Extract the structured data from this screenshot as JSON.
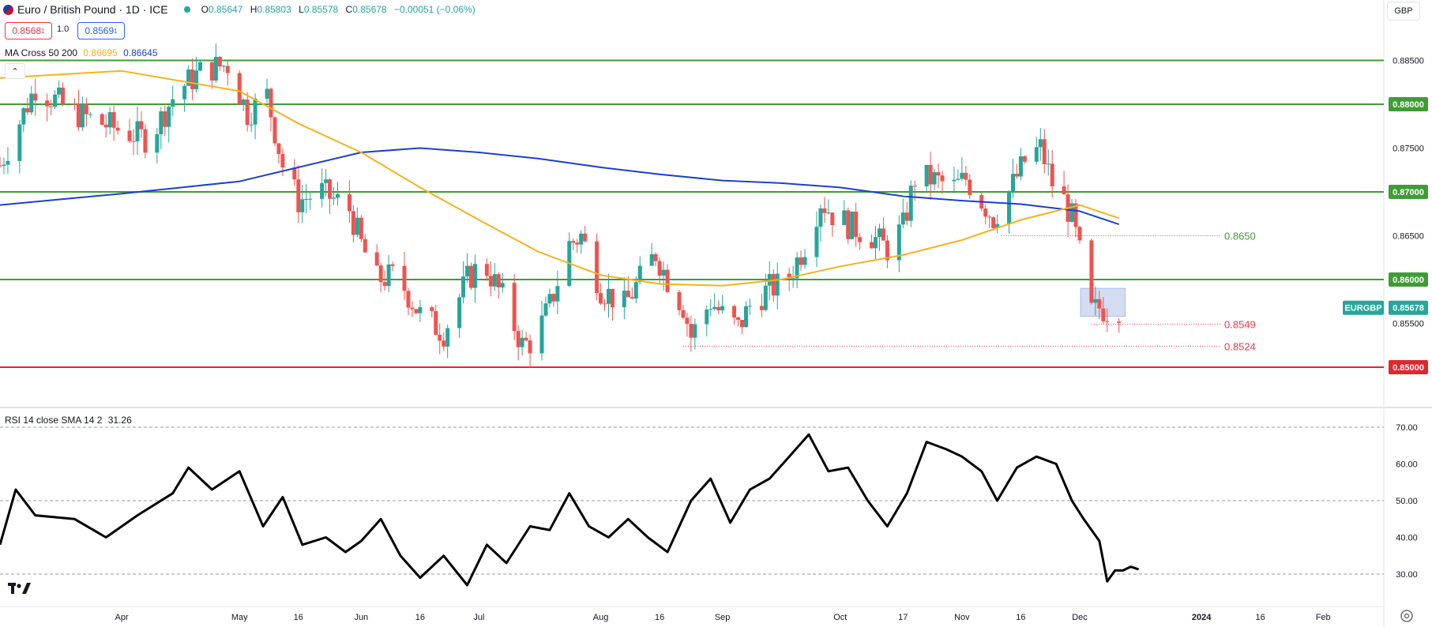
{
  "header": {
    "logo_icon": "eur-gbp-flag-icon",
    "symbol_title": "Euro / British Pound · 1D · ICE",
    "status_dot_color": "#26a69a",
    "ohlc": [
      {
        "key": "O",
        "value": "0.85647"
      },
      {
        "key": "H",
        "value": "0.85803"
      },
      {
        "key": "L",
        "value": "0.85578"
      },
      {
        "key": "C",
        "value": "0.85678"
      },
      {
        "key": "",
        "value": "−0.00051 (−0.06%)"
      }
    ],
    "sell_box": "0.8568",
    "sell_sup": "1",
    "spread": "1.0",
    "buy_box": "0.8569",
    "buy_sup": "1",
    "currency": "GBP"
  },
  "indicators": {
    "ma_label": "MA Cross 50 200",
    "ma50_value": "0.86695",
    "ma200_value": "0.86645",
    "ma50_color": "#f5b21d",
    "ma200_color": "#1e40c8",
    "collapse_icon": "chevron-up-icon",
    "rsi_label": "RSI 14 close SMA 14 2",
    "rsi_value": "31.26"
  },
  "chart_data": {
    "type": "candlestick",
    "title": "Euro / British Pound · 1D · ICE",
    "x_tick_labels": [
      "Apr",
      "May",
      "16",
      "Jun",
      "16",
      "Jul",
      "Aug",
      "16",
      "Sep",
      "Oct",
      "17",
      "Nov",
      "16",
      "Dec",
      "2024",
      "16",
      "Feb"
    ],
    "price_axis": {
      "ticks": [
        "0.88500",
        "0.88000",
        "0.87500",
        "0.87000",
        "0.86500",
        "0.86000",
        "0.85500",
        "0.85000"
      ],
      "ylim": [
        0.8476,
        0.8892
      ]
    },
    "current_price": {
      "label": "EURGBP",
      "value": "0.85678",
      "color": "#26a69a"
    },
    "horizontal_levels": [
      {
        "value": 0.885,
        "label": "",
        "color": "#3f9c35"
      },
      {
        "value": 0.88,
        "label": "0.88000",
        "color": "#3f9c35"
      },
      {
        "value": 0.87,
        "label": "0.87000",
        "color": "#3f9c35"
      },
      {
        "value": 0.86,
        "label": "0.86000",
        "color": "#3f9c35"
      },
      {
        "value": 0.85,
        "label": "0.85000",
        "color": "#e0272e"
      }
    ],
    "dotted_levels": [
      {
        "value": 0.865,
        "label": "0.8650",
        "color": "#3f9c35"
      },
      {
        "value": 0.8549,
        "label": "0.8549",
        "color": "#f23645"
      },
      {
        "value": 0.8524,
        "label": "0.8524",
        "color": "#f23645"
      }
    ],
    "consolidation_box": {
      "from_price": 0.8558,
      "to_price": 0.859
    },
    "close_path": [
      [
        "2023-03-01",
        0.873
      ],
      [
        "2023-03-10",
        0.882
      ],
      [
        "2023-03-20",
        0.879
      ],
      [
        "2023-04-01",
        0.877
      ],
      [
        "2023-04-08",
        0.876
      ],
      [
        "2023-04-15",
        0.8815
      ],
      [
        "2023-04-22",
        0.884
      ],
      [
        "2023-04-28",
        0.8845
      ],
      [
        "2023-05-03",
        0.879
      ],
      [
        "2023-05-08",
        0.881
      ],
      [
        "2023-05-12",
        0.873
      ],
      [
        "2023-05-16",
        0.869
      ],
      [
        "2023-05-22",
        0.87
      ],
      [
        "2023-05-29",
        0.868
      ],
      [
        "2023-06-01",
        0.864
      ],
      [
        "2023-06-05",
        0.86
      ],
      [
        "2023-06-10",
        0.8605
      ],
      [
        "2023-06-16",
        0.856
      ],
      [
        "2023-06-22",
        0.854
      ],
      [
        "2023-06-28",
        0.86
      ],
      [
        "2023-07-02",
        0.862
      ],
      [
        "2023-07-07",
        0.858
      ],
      [
        "2023-07-12",
        0.8525
      ],
      [
        "2023-07-15",
        0.853
      ],
      [
        "2023-07-19",
        0.857
      ],
      [
        "2023-07-24",
        0.864
      ],
      [
        "2023-07-27",
        0.865
      ],
      [
        "2023-08-01",
        0.859
      ],
      [
        "2023-08-07",
        0.857
      ],
      [
        "2023-08-11",
        0.86
      ],
      [
        "2023-08-15",
        0.863
      ],
      [
        "2023-08-18",
        0.86
      ],
      [
        "2023-08-22",
        0.857
      ],
      [
        "2023-08-24",
        0.8535
      ],
      [
        "2023-08-29",
        0.8575
      ],
      [
        "2023-09-01",
        0.856
      ],
      [
        "2023-09-05",
        0.8545
      ],
      [
        "2023-09-08",
        0.857
      ],
      [
        "2023-09-13",
        0.859
      ],
      [
        "2023-09-17",
        0.8595
      ],
      [
        "2023-09-22",
        0.864
      ],
      [
        "2023-09-26",
        0.869
      ],
      [
        "2023-09-29",
        0.8675
      ],
      [
        "2023-10-04",
        0.866
      ],
      [
        "2023-10-09",
        0.865
      ],
      [
        "2023-10-13",
        0.8635
      ],
      [
        "2023-10-17",
        0.866
      ],
      [
        "2023-10-20",
        0.8715
      ],
      [
        "2023-10-24",
        0.8715
      ],
      [
        "2023-10-30",
        0.8705
      ],
      [
        "2023-11-02",
        0.8715
      ],
      [
        "2023-11-06",
        0.869
      ],
      [
        "2023-11-09",
        0.867
      ],
      [
        "2023-11-13",
        0.87
      ],
      [
        "2023-11-17",
        0.8735
      ],
      [
        "2023-11-21",
        0.875
      ],
      [
        "2023-11-24",
        0.871
      ],
      [
        "2023-11-27",
        0.869
      ],
      [
        "2023-11-29",
        0.867
      ],
      [
        "2023-12-01",
        0.863
      ],
      [
        "2023-12-04",
        0.8563
      ],
      [
        "2023-12-06",
        0.8568
      ],
      [
        "2023-12-08",
        0.8565
      ],
      [
        "2023-12-11",
        0.8568
      ]
    ],
    "ma50": {
      "name": "MA 50",
      "points": [
        [
          "2023-03-01",
          0.883
        ],
        [
          "2023-04-01",
          0.8838
        ],
        [
          "2023-05-01",
          0.8815
        ],
        [
          "2023-05-16",
          0.8778
        ],
        [
          "2023-06-01",
          0.8745
        ],
        [
          "2023-06-16",
          0.8705
        ],
        [
          "2023-07-01",
          0.8668
        ],
        [
          "2023-07-16",
          0.8632
        ],
        [
          "2023-08-01",
          0.8605
        ],
        [
          "2023-08-16",
          0.8595
        ],
        [
          "2023-09-01",
          0.8593
        ],
        [
          "2023-09-16",
          0.86
        ],
        [
          "2023-10-01",
          0.8615
        ],
        [
          "2023-10-17",
          0.8628
        ],
        [
          "2023-11-01",
          0.8645
        ],
        [
          "2023-11-16",
          0.8668
        ],
        [
          "2023-12-01",
          0.8685
        ],
        [
          "2023-12-11",
          0.867
        ]
      ]
    },
    "ma200": {
      "name": "MA 200",
      "points": [
        [
          "2023-03-01",
          0.8685
        ],
        [
          "2023-04-01",
          0.8698
        ],
        [
          "2023-05-01",
          0.8712
        ],
        [
          "2023-05-16",
          0.8728
        ],
        [
          "2023-06-01",
          0.8745
        ],
        [
          "2023-06-16",
          0.875
        ],
        [
          "2023-07-01",
          0.8745
        ],
        [
          "2023-07-16",
          0.8738
        ],
        [
          "2023-08-01",
          0.8728
        ],
        [
          "2023-08-16",
          0.872
        ],
        [
          "2023-09-01",
          0.8713
        ],
        [
          "2023-09-16",
          0.871
        ],
        [
          "2023-10-01",
          0.8705
        ],
        [
          "2023-10-17",
          0.8695
        ],
        [
          "2023-11-01",
          0.869
        ],
        [
          "2023-11-16",
          0.8686
        ],
        [
          "2023-12-01",
          0.8678
        ],
        [
          "2023-12-11",
          0.8663
        ]
      ]
    },
    "rsi": {
      "name": "RSI 14",
      "axis_ticks": [
        "70.00",
        "60.00",
        "50.00",
        "40.00",
        "30.00"
      ],
      "ylim": [
        21,
        74
      ],
      "reference_levels": [
        70,
        50,
        30
      ],
      "points": [
        [
          "2023-03-01",
          38
        ],
        [
          "2023-03-05",
          53
        ],
        [
          "2023-03-10",
          46
        ],
        [
          "2023-03-20",
          45
        ],
        [
          "2023-03-28",
          40
        ],
        [
          "2023-04-05",
          46
        ],
        [
          "2023-04-14",
          52
        ],
        [
          "2023-04-18",
          59
        ],
        [
          "2023-04-24",
          53
        ],
        [
          "2023-05-01",
          58
        ],
        [
          "2023-05-07",
          43
        ],
        [
          "2023-05-12",
          51
        ],
        [
          "2023-05-17",
          38
        ],
        [
          "2023-05-23",
          40
        ],
        [
          "2023-05-28",
          36
        ],
        [
          "2023-06-01",
          39
        ],
        [
          "2023-06-06",
          45
        ],
        [
          "2023-06-11",
          35
        ],
        [
          "2023-06-16",
          29
        ],
        [
          "2023-06-22",
          35
        ],
        [
          "2023-06-28",
          27
        ],
        [
          "2023-07-03",
          38
        ],
        [
          "2023-07-08",
          33
        ],
        [
          "2023-07-14",
          43
        ],
        [
          "2023-07-19",
          42
        ],
        [
          "2023-07-24",
          52
        ],
        [
          "2023-07-29",
          43
        ],
        [
          "2023-08-03",
          40
        ],
        [
          "2023-08-08",
          45
        ],
        [
          "2023-08-13",
          40
        ],
        [
          "2023-08-18",
          36
        ],
        [
          "2023-08-24",
          50
        ],
        [
          "2023-08-29",
          56
        ],
        [
          "2023-09-03",
          44
        ],
        [
          "2023-09-08",
          53
        ],
        [
          "2023-09-13",
          56
        ],
        [
          "2023-09-18",
          62
        ],
        [
          "2023-09-23",
          68
        ],
        [
          "2023-09-28",
          58
        ],
        [
          "2023-10-03",
          59
        ],
        [
          "2023-10-08",
          50
        ],
        [
          "2023-10-13",
          43
        ],
        [
          "2023-10-18",
          52
        ],
        [
          "2023-10-23",
          66
        ],
        [
          "2023-10-28",
          64
        ],
        [
          "2023-11-01",
          62
        ],
        [
          "2023-11-06",
          58
        ],
        [
          "2023-11-10",
          50
        ],
        [
          "2023-11-15",
          59
        ],
        [
          "2023-11-20",
          62
        ],
        [
          "2023-11-25",
          60
        ],
        [
          "2023-11-29",
          50
        ],
        [
          "2023-12-02",
          45
        ],
        [
          "2023-12-06",
          39
        ],
        [
          "2023-12-08",
          28
        ],
        [
          "2023-12-10",
          31
        ],
        [
          "2023-12-12",
          31
        ],
        [
          "2023-12-14",
          32
        ],
        [
          "2023-12-16",
          31.26
        ]
      ]
    },
    "bull_color": "#26a69a",
    "bear_color": "#ef5350",
    "grid": false,
    "legend": "top-left"
  },
  "footer": {
    "brand_icon": "tradingview-logo-icon",
    "settings_icon": "gear-icon"
  }
}
